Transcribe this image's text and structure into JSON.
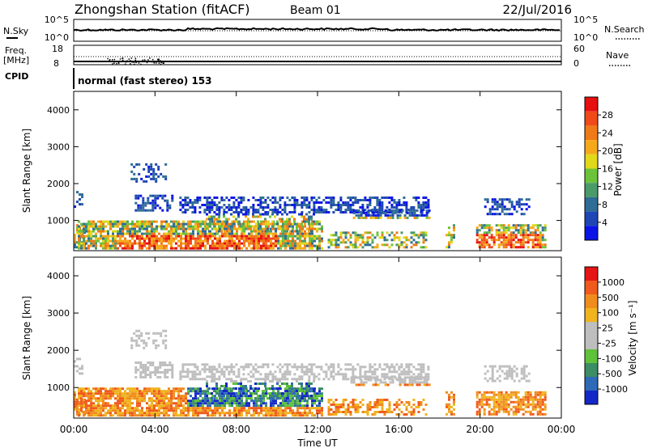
{
  "header": {
    "station": "Zhongshan Station (fitACF)",
    "beam": "Beam 01",
    "date": "22/Jul/2016"
  },
  "status_panels": {
    "nsky_label": "N.Sky",
    "nsearch_label": "N.Search",
    "freq_label": "Freq.",
    "freq_unit": "[MHz]",
    "nave_label": "Nave",
    "cpid_label": "CPID",
    "cpid_text": "normal (fast stereo) 153",
    "left_ticks_top": [
      "10^5",
      "10^0"
    ],
    "right_ticks_top": [
      "10^5",
      "10^0"
    ],
    "left_ticks_freq": [
      "18",
      "8"
    ],
    "right_ticks_nave": [
      "60",
      "0"
    ]
  },
  "chart_data": [
    {
      "type": "heatmap",
      "name": "power",
      "ylabel": "Slant Range [km]",
      "ylim": [
        180,
        4500
      ],
      "yticks": [
        "1000",
        "2000",
        "3000",
        "4000"
      ],
      "colorbar_label": "Power [dB]",
      "colorbar_ticks": [
        "4",
        "8",
        "12",
        "16",
        "20",
        "24",
        "28"
      ],
      "colorbar_colors": [
        "#0a14e6",
        "#1e46b4",
        "#2f6c96",
        "#4a9a6a",
        "#6cc33a",
        "#e0d818",
        "#f5a81a",
        "#ef7a18",
        "#f04a18",
        "#e61010"
      ],
      "clim": [
        0,
        30
      ]
    },
    {
      "type": "heatmap",
      "name": "velocity",
      "ylabel": "Slant Range [km]",
      "xlabel": "Time UT",
      "ylim": [
        180,
        4500
      ],
      "yticks": [
        "1000",
        "2000",
        "3000",
        "4000"
      ],
      "xticks": [
        "00:00",
        "04:00",
        "08:00",
        "12:00",
        "16:00",
        "20:00",
        "00:00"
      ],
      "colorbar_label": "Velocity [m s⁻¹]",
      "colorbar_ticks": [
        "1000",
        "500",
        "100",
        "25",
        "-25",
        "-100",
        "-500",
        "-1000"
      ],
      "colorbar_colors": [
        "#1428c8",
        "#2e6ab8",
        "#3c8c64",
        "#5fc23a",
        "#bebebe",
        "#bebebe",
        "#f0b41e",
        "#f08c1e",
        "#f05a1e",
        "#e61414"
      ]
    }
  ]
}
